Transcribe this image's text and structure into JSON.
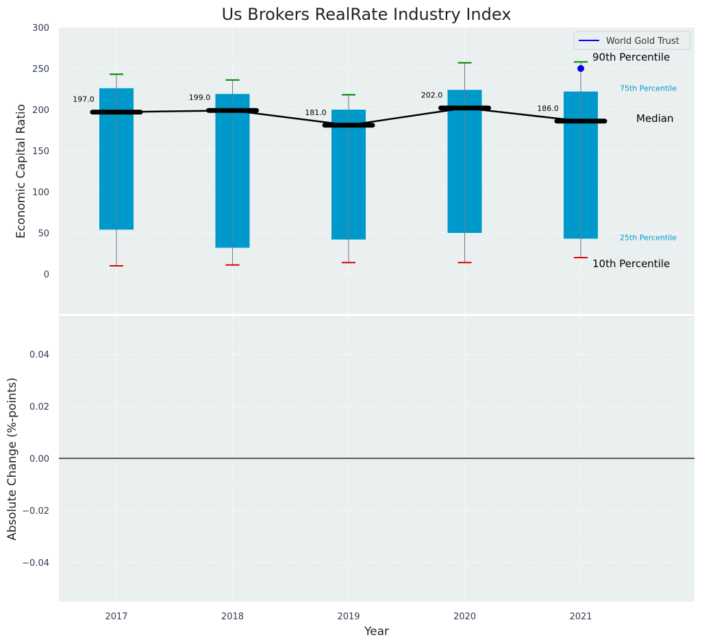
{
  "chart_data": [
    {
      "type": "box",
      "title": "Us Brokers RealRate Industry Index",
      "xlabel": "Year",
      "ylabel": "Economic Capital Ratio",
      "categories": [
        "2017",
        "2018",
        "2019",
        "2020",
        "2021"
      ],
      "ylim": [
        -50,
        300
      ],
      "yticks": [
        0,
        50,
        100,
        150,
        200,
        250,
        300
      ],
      "grid": true,
      "series": [
        {
          "p10": [
            10,
            11,
            14,
            14,
            20
          ],
          "p25": [
            54,
            32,
            42,
            50,
            43
          ],
          "median": [
            197.0,
            199.0,
            181.0,
            202.0,
            186.0
          ],
          "p75": [
            226,
            219,
            200,
            224,
            222
          ],
          "p90": [
            243,
            236,
            218,
            257,
            258
          ]
        }
      ],
      "median_labels": [
        "197.0",
        "199.0",
        "181.0",
        "202.0",
        "186.0"
      ],
      "highlight": {
        "name": "World Gold Trust",
        "category": "2021",
        "value": 250,
        "color": "#0000ee"
      },
      "legend": {
        "position": "top-right",
        "entries": [
          "World Gold Trust"
        ]
      },
      "annotations": {
        "p90": "90th Percentile",
        "p75": "75th Percentile",
        "median": "Median",
        "p25": "25th Percentile",
        "p10": "10th Percentile"
      },
      "colors": {
        "box": "#0099cc",
        "whisker_top": "#008000",
        "whisker_bottom": "#dd0000",
        "median": "#000000",
        "background": "#eaeff0"
      }
    },
    {
      "type": "line",
      "xlabel": "Year",
      "ylabel": "Absolute Change (%-points)",
      "categories": [
        "2017",
        "2018",
        "2019",
        "2020",
        "2021"
      ],
      "ylim": [
        -0.055,
        0.055
      ],
      "yticks": [
        "0.04",
        "0.02",
        "0.00",
        "−0.02",
        "−0.04"
      ],
      "ytick_values": [
        0.04,
        0.02,
        0.0,
        -0.02,
        -0.04
      ],
      "reference_line": 0.0,
      "grid": true
    }
  ]
}
